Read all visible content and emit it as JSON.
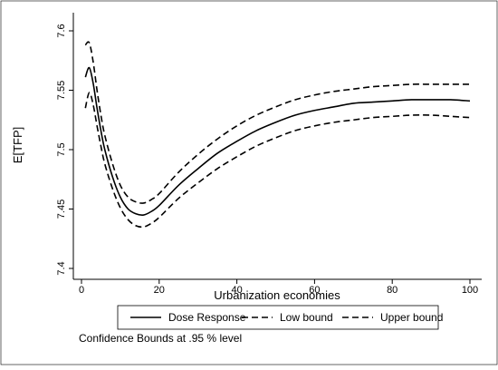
{
  "chart_data": {
    "type": "line",
    "xlabel": "Urbanization economies",
    "ylabel": "E[TFP]",
    "xlim": [
      0,
      100
    ],
    "ylim": [
      7.4,
      7.6
    ],
    "xticks": [
      0,
      20,
      40,
      60,
      80,
      100
    ],
    "yticks": [
      7.4,
      7.45,
      7.5,
      7.55,
      7.6
    ],
    "xtick_labels": [
      "0",
      "20",
      "40",
      "60",
      "80",
      "100"
    ],
    "ytick_labels": [
      "7.4",
      "7.45",
      "7.5",
      "7.55",
      "7.6"
    ],
    "grid": false,
    "legend_position": "bottom",
    "note": "Confidence Bounds at .95 % level",
    "series": [
      {
        "name": "Dose Response",
        "style": "solid",
        "color": "#000000",
        "x": [
          1,
          2,
          3,
          4,
          5,
          6,
          8,
          10,
          12,
          14,
          16,
          18,
          20,
          25,
          30,
          35,
          40,
          45,
          50,
          55,
          60,
          65,
          70,
          75,
          80,
          85,
          90,
          95,
          100
        ],
        "y": [
          7.561,
          7.569,
          7.556,
          7.535,
          7.516,
          7.5,
          7.477,
          7.46,
          7.45,
          7.446,
          7.445,
          7.448,
          7.453,
          7.47,
          7.484,
          7.497,
          7.507,
          7.516,
          7.523,
          7.529,
          7.533,
          7.536,
          7.539,
          7.54,
          7.541,
          7.542,
          7.542,
          7.542,
          7.541
        ]
      },
      {
        "name": "Low bound",
        "style": "dashed",
        "color": "#000000",
        "x": [
          1,
          2,
          3,
          4,
          5,
          6,
          8,
          10,
          12,
          14,
          16,
          18,
          20,
          25,
          30,
          35,
          40,
          45,
          50,
          55,
          60,
          65,
          70,
          75,
          80,
          85,
          90,
          95,
          100
        ],
        "y": [
          7.535,
          7.548,
          7.538,
          7.52,
          7.503,
          7.488,
          7.467,
          7.451,
          7.441,
          7.436,
          7.435,
          7.438,
          7.443,
          7.459,
          7.472,
          7.484,
          7.494,
          7.503,
          7.51,
          7.516,
          7.52,
          7.523,
          7.525,
          7.527,
          7.528,
          7.529,
          7.529,
          7.528,
          7.527
        ]
      },
      {
        "name": "Upper bound",
        "style": "dashed",
        "color": "#000000",
        "x": [
          1,
          2,
          3,
          4,
          5,
          6,
          8,
          10,
          12,
          14,
          16,
          18,
          20,
          25,
          30,
          35,
          40,
          45,
          50,
          55,
          60,
          65,
          70,
          75,
          80,
          85,
          90,
          95,
          100
        ],
        "y": [
          7.588,
          7.59,
          7.574,
          7.55,
          7.529,
          7.512,
          7.488,
          7.47,
          7.46,
          7.456,
          7.455,
          7.458,
          7.463,
          7.481,
          7.496,
          7.509,
          7.52,
          7.529,
          7.536,
          7.542,
          7.546,
          7.549,
          7.551,
          7.553,
          7.554,
          7.555,
          7.555,
          7.555,
          7.555
        ]
      }
    ]
  }
}
